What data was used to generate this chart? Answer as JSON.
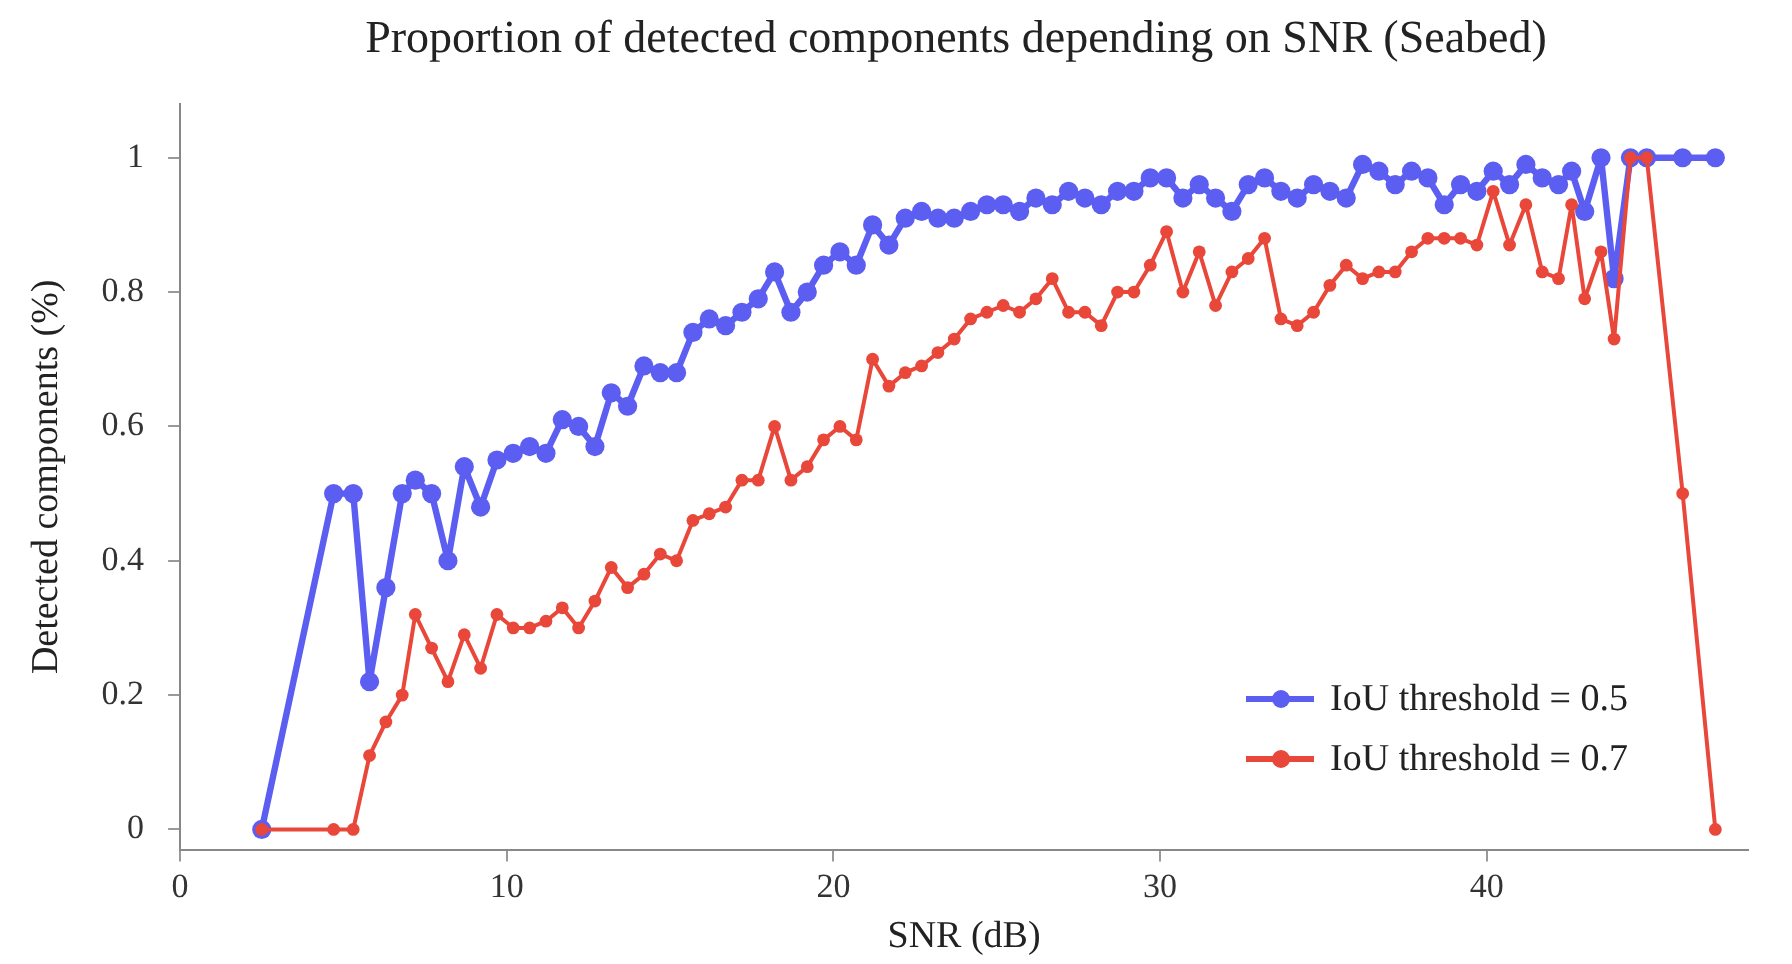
{
  "chart_data": {
    "type": "line",
    "title": "Proportion of detected components depending on SNR (Seabed)",
    "xlabel": "SNR (dB)",
    "ylabel": "Detected components (%)",
    "x": [
      2.5,
      4.7,
      5.3,
      5.8,
      6.3,
      6.8,
      7.2,
      7.7,
      8.2,
      8.7,
      9.2,
      9.7,
      10.2,
      10.7,
      11.2,
      11.7,
      12.2,
      12.7,
      13.2,
      13.7,
      14.2,
      14.7,
      15.2,
      15.7,
      16.2,
      16.7,
      17.2,
      17.7,
      18.2,
      18.7,
      19.2,
      19.7,
      20.2,
      20.7,
      21.2,
      21.7,
      22.2,
      22.7,
      23.2,
      23.7,
      24.2,
      24.7,
      25.2,
      25.7,
      26.2,
      26.7,
      27.2,
      27.7,
      28.2,
      28.7,
      29.2,
      29.7,
      30.2,
      30.7,
      31.2,
      31.7,
      32.2,
      32.7,
      33.2,
      33.7,
      34.2,
      34.7,
      35.2,
      35.7,
      36.2,
      36.7,
      37.2,
      37.7,
      38.2,
      38.7,
      39.2,
      39.7,
      40.2,
      40.7,
      41.2,
      41.7,
      42.2,
      42.6,
      43.0,
      43.5,
      43.9,
      44.4,
      44.9,
      46.0,
      47.0
    ],
    "series": [
      {
        "name": "IoU threshold = 0.5",
        "color": "#5b5ef0",
        "values": [
          0,
          0.5,
          0.5,
          0.22,
          0.36,
          0.5,
          0.52,
          0.5,
          0.4,
          0.54,
          0.48,
          0.55,
          0.56,
          0.57,
          0.56,
          0.61,
          0.6,
          0.57,
          0.65,
          0.63,
          0.69,
          0.68,
          0.68,
          0.74,
          0.76,
          0.75,
          0.77,
          0.79,
          0.83,
          0.77,
          0.8,
          0.84,
          0.86,
          0.84,
          0.9,
          0.87,
          0.91,
          0.92,
          0.91,
          0.91,
          0.92,
          0.93,
          0.93,
          0.92,
          0.94,
          0.93,
          0.95,
          0.94,
          0.93,
          0.95,
          0.95,
          0.97,
          0.97,
          0.94,
          0.96,
          0.94,
          0.92,
          0.96,
          0.97,
          0.95,
          0.94,
          0.96,
          0.95,
          0.94,
          0.99,
          0.98,
          0.96,
          0.98,
          0.97,
          0.93,
          0.96,
          0.95,
          0.98,
          0.96,
          0.99,
          0.97,
          0.96,
          0.98,
          0.92,
          1,
          0.82,
          1,
          1,
          1,
          1
        ]
      },
      {
        "name": "IoU threshold = 0.7",
        "color": "#e8473a",
        "values": [
          0,
          0,
          0,
          0.11,
          0.16,
          0.2,
          0.32,
          0.27,
          0.22,
          0.29,
          0.24,
          0.32,
          0.3,
          0.3,
          0.31,
          0.33,
          0.3,
          0.34,
          0.39,
          0.36,
          0.38,
          0.41,
          0.4,
          0.46,
          0.47,
          0.48,
          0.52,
          0.52,
          0.6,
          0.52,
          0.54,
          0.58,
          0.6,
          0.58,
          0.7,
          0.66,
          0.68,
          0.69,
          0.71,
          0.73,
          0.76,
          0.77,
          0.78,
          0.77,
          0.79,
          0.82,
          0.77,
          0.77,
          0.75,
          0.8,
          0.8,
          0.84,
          0.89,
          0.8,
          0.86,
          0.78,
          0.83,
          0.85,
          0.88,
          0.76,
          0.75,
          0.77,
          0.81,
          0.84,
          0.82,
          0.83,
          0.83,
          0.86,
          0.88,
          0.88,
          0.88,
          0.87,
          0.95,
          0.87,
          0.93,
          0.83,
          0.82,
          0.93,
          0.79,
          0.86,
          0.73,
          1,
          1,
          0.5,
          0
        ]
      }
    ],
    "xlim": [
      0,
      48
    ],
    "xticks": [
      0,
      10,
      20,
      30,
      40
    ],
    "ylim": [
      -0.03,
      1.08
    ],
    "yticks": [
      0,
      0.2,
      0.4,
      0.6,
      0.8,
      1
    ],
    "legend": "bottom right",
    "marker": "circle",
    "line_style": "solid"
  }
}
